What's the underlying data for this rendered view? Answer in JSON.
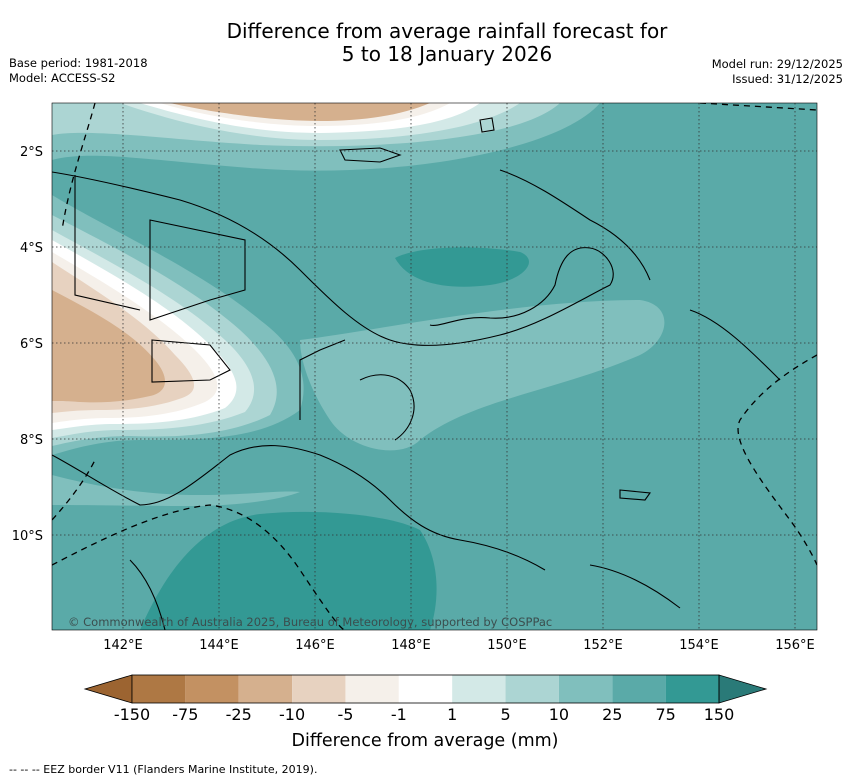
{
  "header": {
    "title_line1": "Difference from average rainfall forecast for",
    "title_line2": "5 to 18 January 2026",
    "base_period": "Base period: 1981-2018",
    "model": "Model: ACCESS-S2",
    "model_run": "Model run: 29/12/2025",
    "issued": "Issued: 31/12/2025"
  },
  "map": {
    "lon_ticks": [
      "142°E",
      "144°E",
      "146°E",
      "148°E",
      "150°E",
      "152°E",
      "154°E",
      "156°E"
    ],
    "lat_ticks": [
      "2°S",
      "4°S",
      "6°S",
      "8°S",
      "10°S"
    ],
    "copyright": "© Commonwealth of Australia 2025, Bureau of Meteorology, supported by COSPPac",
    "colors": {
      "land_outline": "#000000",
      "graticule": "#333333",
      "eez": "#000000"
    }
  },
  "colorbar": {
    "labels": [
      "-150",
      "-75",
      "-25",
      "-10",
      "-5",
      "-1",
      "1",
      "5",
      "10",
      "25",
      "75",
      "150"
    ],
    "colors": [
      "#9c6431",
      "#ae7844",
      "#c39162",
      "#d5b08e",
      "#e7d2c0",
      "#f5f0ea",
      "#ffffff",
      "#d3e9e7",
      "#acd5d3",
      "#80bfbd",
      "#5aaaa8",
      "#339994",
      "#2a7a78"
    ],
    "title": "Difference from average (mm)"
  },
  "footer": {
    "eez_legend": "-- -- -- EEZ border V11 (Flanders Marine Institute, 2019)."
  }
}
